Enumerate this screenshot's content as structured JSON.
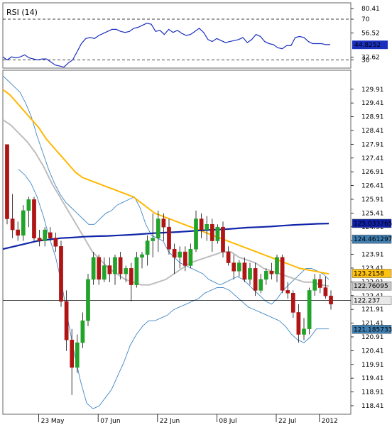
{
  "chart_data": {
    "type": "candlestick",
    "rsi_panel": {
      "title": "RSI (14)",
      "ylim": [
        22,
        86
      ],
      "ticks": [
        {
          "value": 80.41,
          "label": "80.41"
        },
        {
          "value": 70,
          "label": "70"
        },
        {
          "value": 56.52,
          "label": "56.52"
        },
        {
          "value": 32.62,
          "label": "32.62"
        },
        {
          "value": 30,
          "label": "30"
        }
      ],
      "levels": [
        70,
        30
      ],
      "current": {
        "value": 44.8252,
        "label": "44.8252"
      },
      "values": [
        33,
        30,
        33,
        32,
        33,
        35,
        32,
        31,
        30,
        31,
        31,
        28,
        25,
        24,
        23,
        27,
        30,
        38,
        46,
        51,
        52,
        51,
        54,
        56,
        58,
        60,
        60,
        58,
        57,
        58,
        61,
        62,
        64,
        66,
        65,
        58,
        59,
        55,
        60,
        57,
        59,
        56,
        54,
        55,
        58,
        61,
        57,
        50,
        48,
        51,
        49,
        47,
        48,
        49,
        50,
        52,
        47,
        50,
        55,
        53,
        48,
        46,
        45,
        42,
        41,
        44,
        44,
        52,
        53,
        52,
        48,
        46,
        46,
        46,
        45,
        45
      ]
    },
    "price_panel": {
      "ylim": [
        118.1,
        130.6
      ],
      "ticks": [
        "129.91",
        "129.41",
        "128.91",
        "128.41",
        "127.91",
        "127.41",
        "126.91",
        "126.41",
        "125.91",
        "125.41",
        "124.91",
        "124.41",
        "123.91",
        "123.41",
        "122.91",
        "122.41",
        "121.91",
        "121.41",
        "120.91",
        "120.41",
        "119.91",
        "119.41",
        "118.91",
        "118.41"
      ],
      "x_labels": [
        {
          "index": 6,
          "label": "23 May"
        },
        {
          "index": 17,
          "label": "07 Jun"
        },
        {
          "index": 28,
          "label": "22 Jun"
        },
        {
          "index": 39,
          "label": "08 Jul"
        },
        {
          "index": 50,
          "label": "22 Jul"
        },
        {
          "index": 58,
          "label": "2012"
        }
      ],
      "horizontal_line": 122.237,
      "value_tags": [
        {
          "value": 125.033765,
          "label": "125.033765",
          "bg": "#1020a8",
          "fg": "#ffffff"
        },
        {
          "value": 124.461297,
          "label": "124.461297",
          "bg": "#3f7fb0",
          "fg": "#ffffff"
        },
        {
          "value": 123.2158,
          "label": "123.2158",
          "bg": "#ffc20e",
          "fg": "#000000"
        },
        {
          "value": 122.76095,
          "label": "122.76095",
          "bg": "#c8c8c8",
          "fg": "#000000"
        },
        {
          "value": 122.237,
          "label": "122.237",
          "bg": "#e8e8e8",
          "fg": "#000000"
        },
        {
          "value": 121.185733,
          "label": "121.185733",
          "bg": "#3f7fb0",
          "fg": "#ffffff"
        }
      ],
      "candles": [
        [
          127.9,
          127.9,
          125.0,
          125.2
        ],
        [
          125.2,
          126.1,
          124.5,
          124.8
        ],
        [
          124.8,
          125.1,
          124.4,
          124.6
        ],
        [
          124.6,
          125.7,
          124.4,
          125.5
        ],
        [
          125.5,
          126.0,
          124.9,
          125.9
        ],
        [
          125.9,
          126.0,
          124.4,
          124.5
        ],
        [
          124.5,
          124.8,
          124.2,
          124.4
        ],
        [
          124.4,
          124.9,
          124.2,
          124.8
        ],
        [
          124.7,
          124.9,
          124.4,
          124.5
        ],
        [
          124.5,
          124.7,
          124.0,
          124.2
        ],
        [
          124.2,
          124.4,
          122.0,
          122.2
        ],
        [
          122.2,
          122.6,
          120.4,
          120.8
        ],
        [
          120.8,
          121.2,
          118.8,
          119.8
        ],
        [
          119.8,
          121.0,
          119.6,
          120.7
        ],
        [
          120.7,
          121.8,
          120.5,
          121.5
        ],
        [
          121.5,
          123.2,
          121.3,
          123.0
        ],
        [
          123.0,
          124.0,
          122.8,
          123.8
        ],
        [
          123.8,
          123.9,
          122.8,
          123.0
        ],
        [
          123.0,
          123.8,
          122.9,
          123.5
        ],
        [
          123.5,
          123.8,
          122.9,
          123.2
        ],
        [
          123.2,
          123.9,
          122.8,
          123.8
        ],
        [
          123.8,
          124.0,
          123.0,
          123.2
        ],
        [
          123.2,
          123.5,
          122.9,
          123.4
        ],
        [
          123.4,
          123.6,
          122.2,
          122.8
        ],
        [
          122.8,
          124.0,
          122.7,
          123.8
        ],
        [
          123.8,
          124.0,
          123.4,
          123.9
        ],
        [
          123.9,
          124.6,
          123.5,
          124.4
        ],
        [
          124.4,
          125.4,
          123.8,
          124.5
        ],
        [
          124.5,
          125.5,
          124.0,
          125.2
        ],
        [
          125.2,
          125.4,
          124.4,
          124.9
        ],
        [
          124.9,
          125.2,
          123.9,
          124.1
        ],
        [
          124.1,
          124.3,
          123.2,
          123.8
        ],
        [
          123.8,
          124.2,
          123.4,
          124.0
        ],
        [
          124.0,
          124.2,
          123.3,
          123.5
        ],
        [
          123.5,
          124.3,
          123.4,
          124.1
        ],
        [
          124.1,
          125.5,
          124.0,
          125.2
        ],
        [
          125.2,
          125.4,
          124.5,
          124.8
        ],
        [
          124.8,
          125.3,
          124.4,
          125.0
        ],
        [
          125.0,
          125.2,
          124.0,
          124.4
        ],
        [
          124.4,
          125.0,
          124.3,
          124.9
        ],
        [
          124.9,
          125.1,
          123.8,
          124.0
        ],
        [
          124.0,
          124.2,
          123.5,
          123.6
        ],
        [
          123.6,
          123.9,
          123.0,
          123.3
        ],
        [
          123.3,
          123.7,
          123.1,
          123.6
        ],
        [
          123.6,
          123.8,
          122.9,
          123.0
        ],
        [
          123.0,
          123.6,
          122.8,
          123.4
        ],
        [
          123.4,
          123.6,
          122.4,
          122.6
        ],
        [
          122.6,
          123.2,
          122.5,
          123.0
        ],
        [
          123.0,
          123.4,
          122.8,
          123.3
        ],
        [
          123.3,
          123.6,
          123.0,
          123.2
        ],
        [
          123.2,
          123.9,
          122.9,
          123.8
        ],
        [
          123.8,
          123.9,
          122.5,
          122.6
        ],
        [
          122.6,
          122.9,
          122.3,
          122.5
        ],
        [
          122.5,
          122.6,
          121.6,
          121.8
        ],
        [
          121.8,
          122.1,
          120.7,
          121.0
        ],
        [
          121.0,
          121.6,
          120.8,
          121.2
        ],
        [
          121.2,
          122.7,
          121.0,
          122.6
        ],
        [
          122.6,
          123.2,
          122.4,
          123.0
        ],
        [
          123.0,
          123.2,
          122.5,
          122.7
        ],
        [
          122.7,
          123.1,
          122.3,
          122.4
        ],
        [
          122.4,
          122.6,
          121.9,
          122.1
        ]
      ],
      "sma_yellow": [
        129.9,
        129.7,
        129.4,
        129.1,
        128.8,
        128.5,
        128.1,
        127.8,
        127.5,
        127.2,
        126.9,
        126.7,
        126.6,
        126.5,
        126.4,
        126.3,
        126.2,
        126.1,
        126.0,
        125.8,
        125.6,
        125.4,
        125.3,
        125.2,
        125.1,
        125.0,
        124.9,
        124.8,
        124.7,
        124.6,
        124.5,
        124.4,
        124.3,
        124.2,
        124.1,
        124.0,
        123.9,
        123.8,
        123.7,
        123.6,
        123.5,
        123.4,
        123.35,
        123.3,
        123.25,
        123.2
      ],
      "sma_gray": [
        128.8,
        128.6,
        128.3,
        128.0,
        127.6,
        127.1,
        126.5,
        126.0,
        125.5,
        125.0,
        124.5,
        124.0,
        123.7,
        123.4,
        123.2,
        123.0,
        122.9,
        122.8,
        122.8,
        122.9,
        123.0,
        123.2,
        123.4,
        123.6,
        123.7,
        123.8,
        123.9,
        124.0,
        124.0,
        123.8,
        123.7,
        123.6,
        123.4,
        123.3,
        123.2,
        123.1,
        123.0,
        122.9,
        122.9,
        122.8,
        122.76
      ],
      "ma_blue": [
        124.1,
        124.2,
        124.3,
        124.4,
        124.45,
        124.5,
        124.52,
        124.55,
        124.57,
        124.58,
        124.6,
        124.62,
        124.65,
        124.68,
        124.7,
        124.72,
        124.75,
        124.78,
        124.8,
        124.82,
        124.85,
        124.88,
        124.9,
        124.92,
        124.95,
        124.98,
        125.0,
        125.02,
        125.03
      ],
      "bollinger_upper": [
        130.4,
        130.2,
        130.0,
        129.8,
        129.4,
        128.9,
        128.2,
        127.6,
        127.0,
        126.5,
        126.1,
        125.8,
        125.6,
        125.4,
        125.2,
        125.0,
        125.0,
        125.2,
        125.4,
        125.5,
        125.7,
        125.8,
        125.9,
        126.0,
        125.6,
        125.0,
        124.6,
        124.5,
        124.4,
        124.0,
        123.8,
        123.6,
        123.5,
        123.4,
        123.3,
        123.2,
        123.0,
        122.9,
        122.8,
        122.9,
        123.0,
        123.1,
        123.0,
        122.8,
        122.6,
        122.4,
        122.2,
        122.1,
        122.3,
        122.6,
        122.8,
        123.0,
        123.2,
        123.4,
        123.4,
        123.3,
        123.2,
        123.0
      ],
      "bollinger_lower": [
        127.0,
        126.8,
        126.5,
        126.0,
        125.3,
        124.5,
        123.8,
        122.8,
        121.5,
        120.3,
        119.3,
        118.5,
        118.3,
        118.4,
        118.7,
        119.0,
        119.5,
        120.0,
        120.6,
        121.0,
        121.3,
        121.5,
        121.5,
        121.6,
        121.7,
        121.9,
        122.0,
        122.1,
        122.2,
        122.3,
        122.5,
        122.6,
        122.7,
        122.7,
        122.6,
        122.4,
        122.2,
        122.0,
        121.9,
        121.8,
        121.7,
        121.6,
        121.5,
        121.3,
        121.0,
        120.8,
        120.7,
        120.9,
        121.2,
        121.2,
        121.2
      ]
    }
  }
}
